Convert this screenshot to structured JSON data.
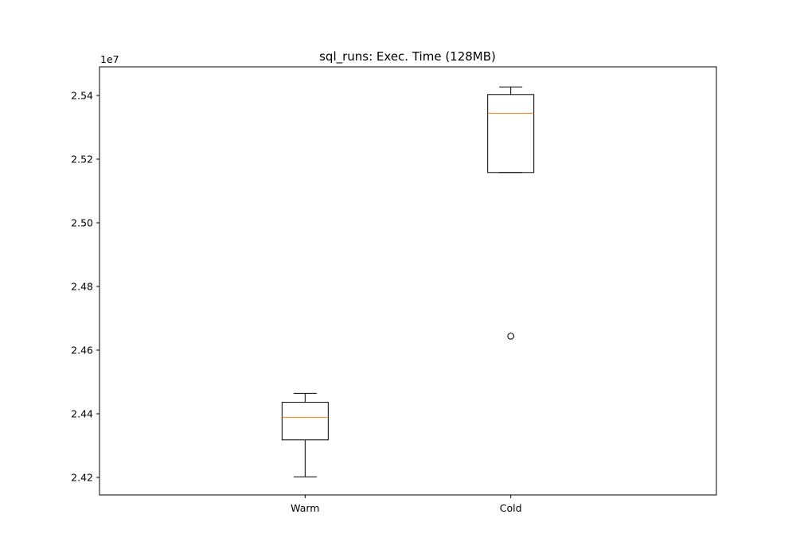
{
  "chart_data": {
    "type": "box",
    "title": "sql_runs: Exec. Time (128MB)",
    "xlabel": "",
    "ylabel": "",
    "y_offset_label": "1e7",
    "categories": [
      "Warm",
      "Cold"
    ],
    "ylim": [
      2.4145,
      2.549
    ],
    "yticks": [
      2.42,
      2.44,
      2.46,
      2.48,
      2.5,
      2.52,
      2.54
    ],
    "ytick_labels": [
      "2.42",
      "2.44",
      "2.46",
      "2.48",
      "2.50",
      "2.52",
      "2.54"
    ],
    "boxes": [
      {
        "name": "Warm",
        "whisker_low": 2.4202,
        "q1": 2.4318,
        "median": 2.4389,
        "q3": 2.4436,
        "whisker_high": 2.4464,
        "outliers": []
      },
      {
        "name": "Cold",
        "whisker_low": 2.5158,
        "q1": 2.5158,
        "median": 2.5344,
        "q3": 2.5403,
        "whisker_high": 2.5427,
        "outliers": [
          2.4644
        ]
      }
    ],
    "grid": false,
    "colors": {
      "box": "#000000",
      "median": "#ff7f0e",
      "axes": "#000000"
    }
  }
}
